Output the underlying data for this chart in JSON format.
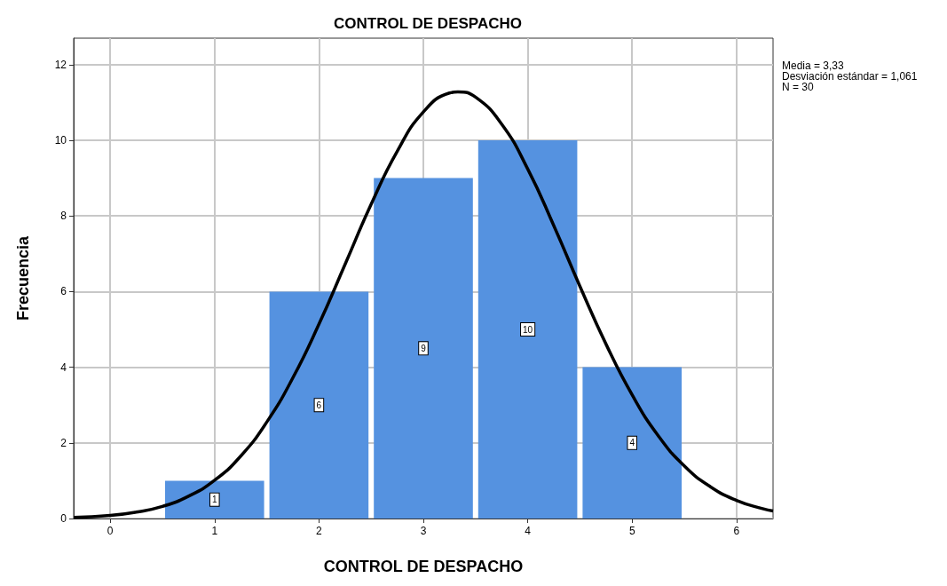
{
  "chart_data": {
    "type": "histogram",
    "title": "CONTROL DE DESPACHO",
    "xlabel": "CONTROL DE DESPACHO",
    "ylabel": "Frecuencia",
    "bins": [
      0.5,
      1.5,
      2.5,
      3.5,
      4.5,
      5.5
    ],
    "values": [
      1,
      6,
      9,
      10,
      4
    ],
    "color": "#5592e0",
    "value_labels": [
      "1",
      "6",
      "9",
      "10",
      "4"
    ],
    "series": [
      {
        "type": "line",
        "color": "#000000",
        "x": [
          -0.35,
          0,
          0.25,
          0.5,
          0.75,
          1,
          1.25,
          1.5,
          1.75,
          2,
          2.25,
          2.5,
          2.75,
          3,
          3.25,
          3.33,
          3.5,
          3.75,
          4,
          4.25,
          4.5,
          4.75,
          5,
          5.25,
          5.5,
          5.75,
          6,
          6.25,
          6.35
        ],
        "values": [
          0.03,
          0.08,
          0.17,
          0.32,
          0.59,
          1.01,
          1.65,
          2.55,
          3.72,
          5.14,
          6.72,
          8.31,
          9.71,
          10.75,
          11.25,
          11.28,
          11.14,
          10.43,
          9.24,
          7.74,
          6.14,
          4.61,
          3.27,
          2.19,
          1.39,
          0.84,
          0.48,
          0.26,
          0.2
        ]
      }
    ],
    "xlim": [
      -0.35,
      6.35
    ],
    "xticks": [
      0,
      1,
      2,
      3,
      4,
      5,
      6
    ],
    "ylim": [
      0,
      12.7
    ],
    "yticks": [
      0,
      2,
      4,
      6,
      8,
      10,
      12
    ],
    "grid": true,
    "annotations": [
      "Media = 3,33",
      "Desviación estándar = 1,061",
      "N = 30"
    ]
  }
}
